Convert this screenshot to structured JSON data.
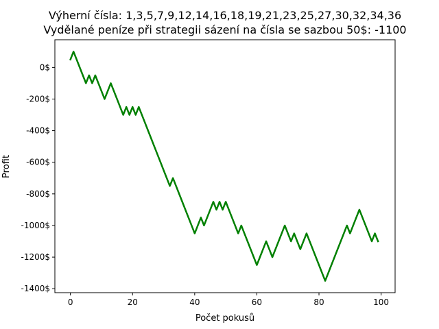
{
  "chart_data": {
    "type": "line",
    "title_line1": "Výherní čísla: 1,3,5,7,9,12,14,16,18,19,21,23,25,27,30,32,34,36",
    "title_line2": "Vydělané peníze při strategii sázení na čísla se sazbou 50$: -1100",
    "xlabel": "Počet pokusů",
    "ylabel": "Profit",
    "xlim": [
      -5,
      104.5
    ],
    "ylim": [
      -1425,
      175
    ],
    "x_ticks": [
      0,
      20,
      40,
      60,
      80,
      100
    ],
    "x_tick_labels": [
      "0",
      "20",
      "40",
      "60",
      "80",
      "100"
    ],
    "y_ticks": [
      0,
      -200,
      -400,
      -600,
      -800,
      -1000,
      -1200,
      -1400
    ],
    "y_tick_labels": [
      "0$",
      "-200$",
      "-400$",
      "-600$",
      "-800$",
      "-1000$",
      "-1200$",
      "-1400$"
    ],
    "grid": false,
    "line_color": "#008000",
    "series": [
      {
        "x": [
          0,
          1,
          2,
          3,
          4,
          5,
          6,
          7,
          8,
          9,
          10,
          11,
          12,
          13,
          14,
          15,
          16,
          17,
          18,
          19,
          20,
          21,
          22,
          23,
          24,
          25,
          26,
          27,
          28,
          29,
          30,
          31,
          32,
          33,
          34,
          35,
          36,
          37,
          38,
          39,
          40,
          41,
          42,
          43,
          44,
          45,
          46,
          47,
          48,
          49,
          50,
          51,
          52,
          53,
          54,
          55,
          56,
          57,
          58,
          59,
          60,
          61,
          62,
          63,
          64,
          65,
          66,
          67,
          68,
          69,
          70,
          71,
          72,
          73,
          74,
          75,
          76,
          77,
          78,
          79,
          80,
          81,
          82,
          83,
          84,
          85,
          86,
          87,
          88,
          89,
          90,
          91,
          92,
          93,
          94,
          95,
          96,
          97,
          98,
          99
        ],
        "y": [
          50,
          100,
          50,
          0,
          -50,
          -100,
          -50,
          -100,
          -50,
          -100,
          -150,
          -200,
          -150,
          -100,
          -150,
          -200,
          -250,
          -300,
          -250,
          -300,
          -250,
          -300,
          -250,
          -300,
          -350,
          -400,
          -450,
          -500,
          -550,
          -600,
          -650,
          -700,
          -750,
          -700,
          -750,
          -800,
          -850,
          -900,
          -950,
          -1000,
          -1050,
          -1000,
          -950,
          -1000,
          -950,
          -900,
          -850,
          -900,
          -850,
          -900,
          -850,
          -900,
          -950,
          -1000,
          -1050,
          -1000,
          -1050,
          -1100,
          -1150,
          -1200,
          -1250,
          -1200,
          -1150,
          -1100,
          -1150,
          -1200,
          -1150,
          -1100,
          -1050,
          -1000,
          -1050,
          -1100,
          -1050,
          -1100,
          -1150,
          -1100,
          -1050,
          -1100,
          -1150,
          -1200,
          -1250,
          -1300,
          -1350,
          -1300,
          -1250,
          -1200,
          -1150,
          -1100,
          -1050,
          -1000,
          -1050,
          -1000,
          -950,
          -900,
          -950,
          -1000,
          -1050,
          -1100,
          -1050,
          -1100
        ]
      }
    ]
  }
}
